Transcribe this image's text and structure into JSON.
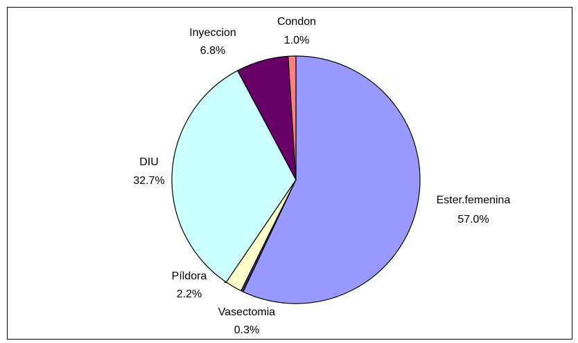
{
  "chart_data": {
    "type": "pie",
    "categories": [
      "Ester.femenina",
      "Vasectomia",
      "Píldora",
      "DIU",
      "Inyeccion",
      "Condon"
    ],
    "values": [
      57.0,
      0.3,
      2.2,
      32.7,
      6.8,
      1.0
    ],
    "value_labels": [
      "57.0%",
      "0.3%",
      "2.2%",
      "32.7%",
      "6.8%",
      "1.0%"
    ],
    "colors": [
      "#9999ff",
      "#333366",
      "#ffffcc",
      "#ccffff",
      "#660066",
      "#ff8080"
    ]
  }
}
